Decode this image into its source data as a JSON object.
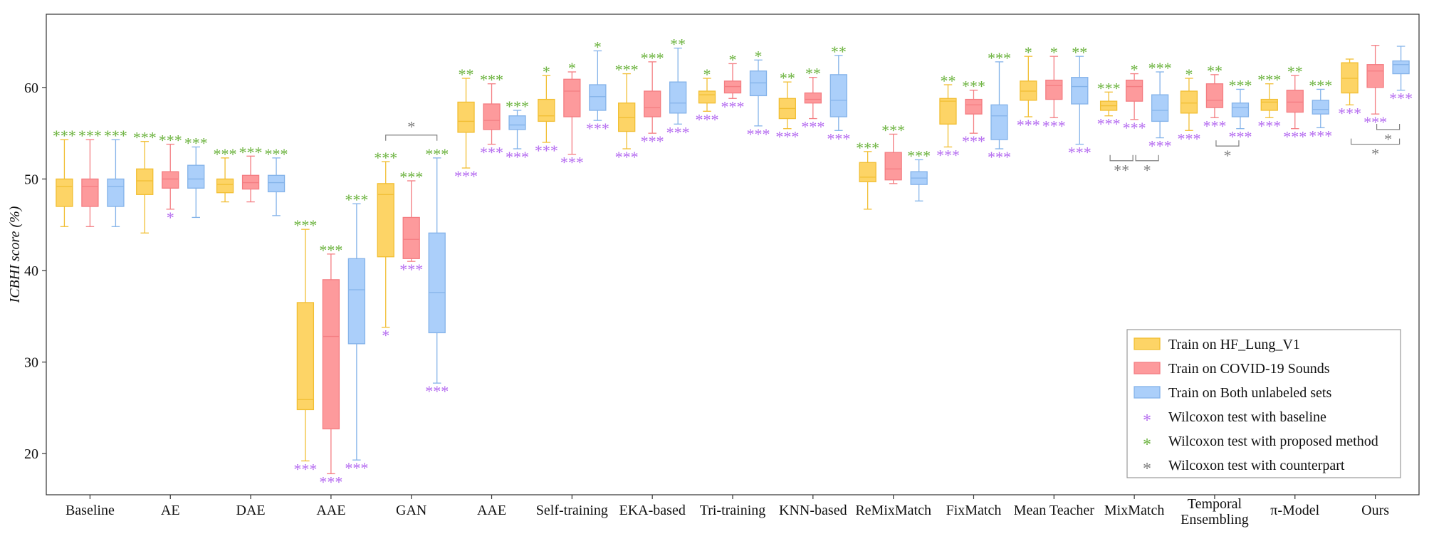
{
  "chart_data": {
    "type": "box",
    "ylabel": "ICBHI score (%)",
    "ylim": [
      15.5,
      68
    ],
    "yticks": [
      20,
      30,
      40,
      50,
      60
    ],
    "grid": false,
    "legend_position": "bottom-right",
    "categories": [
      "Baseline",
      "AE",
      "DAE",
      "AAE",
      "GAN",
      "AAE",
      "Self-training",
      "EKA-based",
      "Tri-training",
      "KNN-based",
      "ReMixMatch",
      "FixMatch",
      "Mean Teacher",
      "MixMatch",
      "Temporal Ensembling",
      "π-Model",
      "Ours"
    ],
    "series": [
      {
        "name": "Train on HF_Lung_V1",
        "fill": "#FDD466",
        "edge": "#F1BE32",
        "boxes": [
          [
            44.8,
            47.0,
            49.2,
            50.0,
            54.3
          ],
          [
            44.1,
            48.3,
            49.8,
            51.1,
            54.1
          ],
          [
            47.5,
            48.5,
            49.4,
            50.0,
            52.3
          ],
          [
            19.2,
            24.8,
            25.9,
            36.5,
            44.5
          ],
          [
            33.8,
            41.5,
            48.3,
            49.5,
            51.9
          ],
          [
            51.2,
            55.1,
            56.3,
            58.4,
            61.0
          ],
          [
            54.0,
            56.3,
            56.9,
            58.7,
            61.3
          ],
          [
            53.3,
            55.2,
            56.7,
            58.3,
            61.5
          ],
          [
            57.4,
            58.3,
            59.2,
            59.6,
            61.0
          ],
          [
            55.5,
            56.6,
            57.7,
            58.8,
            60.6
          ],
          [
            46.7,
            49.7,
            50.2,
            51.8,
            53.0
          ],
          [
            53.5,
            56.0,
            58.5,
            58.8,
            60.3
          ],
          [
            56.8,
            58.6,
            59.6,
            60.7,
            63.4
          ],
          [
            56.9,
            57.5,
            58.0,
            58.5,
            59.5
          ],
          [
            55.3,
            57.2,
            58.3,
            59.6,
            61.0
          ],
          [
            56.7,
            57.5,
            58.4,
            58.7,
            60.4
          ],
          [
            58.1,
            59.4,
            61.0,
            62.7,
            63.1
          ]
        ]
      },
      {
        "name": "Train on COVID-19 Sounds",
        "fill": "#FD9A9C",
        "edge": "#F47D82",
        "boxes": [
          [
            44.8,
            47.0,
            49.2,
            50.0,
            54.3
          ],
          [
            46.7,
            49.0,
            50.0,
            50.8,
            53.8
          ],
          [
            47.5,
            48.9,
            49.6,
            50.4,
            52.5
          ],
          [
            17.8,
            22.7,
            32.8,
            39.0,
            41.8
          ],
          [
            41.0,
            41.3,
            43.4,
            45.8,
            49.8
          ],
          [
            53.8,
            55.4,
            56.4,
            58.2,
            60.4
          ],
          [
            52.7,
            56.8,
            59.6,
            60.9,
            61.7
          ],
          [
            55.0,
            56.8,
            57.8,
            59.6,
            62.8
          ],
          [
            58.8,
            59.4,
            60.1,
            60.7,
            62.6
          ],
          [
            56.6,
            58.3,
            58.7,
            59.4,
            61.1
          ],
          [
            49.5,
            49.9,
            51.1,
            52.9,
            54.9
          ],
          [
            55.0,
            57.1,
            58.1,
            58.7,
            59.7
          ],
          [
            56.7,
            58.7,
            60.2,
            60.8,
            63.4
          ],
          [
            56.5,
            58.5,
            60.1,
            60.8,
            61.5
          ],
          [
            56.7,
            57.8,
            58.6,
            60.4,
            61.4
          ],
          [
            55.5,
            57.3,
            58.4,
            59.7,
            61.3
          ],
          [
            57.1,
            60.0,
            61.8,
            62.5,
            64.6
          ]
        ]
      },
      {
        "name": "Train on Both unlabeled sets",
        "fill": "#ABCFFA",
        "edge": "#84B3E9",
        "boxes": [
          [
            44.8,
            47.0,
            49.2,
            50.0,
            54.3
          ],
          [
            45.8,
            49.0,
            50.0,
            51.5,
            53.5
          ],
          [
            46.0,
            48.6,
            49.6,
            50.4,
            52.3
          ],
          [
            19.3,
            32.0,
            37.9,
            41.3,
            47.3
          ],
          [
            27.7,
            33.2,
            37.6,
            44.1,
            52.3
          ],
          [
            53.3,
            55.4,
            55.9,
            56.9,
            57.5
          ],
          [
            56.4,
            57.5,
            59.0,
            60.3,
            64.0
          ],
          [
            56.0,
            57.2,
            58.3,
            60.6,
            64.3
          ],
          [
            55.8,
            59.1,
            60.5,
            61.8,
            63.0
          ],
          [
            55.3,
            56.8,
            58.6,
            61.4,
            63.5
          ],
          [
            47.6,
            49.4,
            50.1,
            50.8,
            52.1
          ],
          [
            53.3,
            54.3,
            56.9,
            58.1,
            62.8
          ],
          [
            53.8,
            58.2,
            60.1,
            61.1,
            63.4
          ],
          [
            54.5,
            56.3,
            57.5,
            59.2,
            61.7
          ],
          [
            55.5,
            56.8,
            57.8,
            58.3,
            59.8
          ],
          [
            55.6,
            57.1,
            57.6,
            58.6,
            59.8
          ],
          [
            59.7,
            61.5,
            62.5,
            62.9,
            64.5
          ]
        ]
      }
    ],
    "annotations": {
      "green_top": [
        [
          "***",
          "***",
          "***"
        ],
        [
          "***",
          "***",
          "***"
        ],
        [
          "***",
          "***",
          "***"
        ],
        [
          "***",
          "***",
          "***"
        ],
        [
          "***",
          "***",
          "***"
        ],
        [
          "**",
          "***",
          "***"
        ],
        [
          "*",
          "*",
          "*"
        ],
        [
          "***",
          "***",
          "**"
        ],
        [
          "*",
          "*",
          "*"
        ],
        [
          "**",
          "**",
          "**"
        ],
        [
          "***",
          "***",
          "***"
        ],
        [
          "**",
          "***",
          "***"
        ],
        [
          "*",
          "*",
          "**"
        ],
        [
          "***",
          "*",
          "***"
        ],
        [
          "*",
          "**",
          "***"
        ],
        [
          "***",
          "**",
          "***"
        ],
        [
          "",
          "",
          ""
        ]
      ],
      "purple_bottom": [
        [
          "",
          "",
          ""
        ],
        [
          "",
          "*",
          ""
        ],
        [
          "",
          "",
          ""
        ],
        [
          "***",
          "***",
          "***"
        ],
        [
          "*",
          "***",
          "***"
        ],
        [
          "***",
          "***",
          "***"
        ],
        [
          "***",
          "***",
          "***"
        ],
        [
          "***",
          "***",
          "***"
        ],
        [
          "***",
          "***",
          "***"
        ],
        [
          "***",
          "***",
          "***"
        ],
        [
          "",
          "",
          ""
        ],
        [
          "***",
          "***",
          "***"
        ],
        [
          "***",
          "***",
          "***"
        ],
        [
          "***",
          "***",
          "***"
        ],
        [
          "***",
          "***",
          "***"
        ],
        [
          "***",
          "***",
          "***"
        ],
        [
          "***",
          "***",
          "***"
        ]
      ],
      "counterpart_brackets": [
        {
          "category": 4,
          "from": 0,
          "to": 2,
          "label": "*",
          "side": "top",
          "y": 54.8
        },
        {
          "category": 13,
          "from": 0,
          "to": 1,
          "label": "**",
          "side": "bottom",
          "y": 52.0
        },
        {
          "category": 13,
          "from": 1,
          "to": 2,
          "label": "*",
          "side": "bottom",
          "y": 52.0
        },
        {
          "category": 14,
          "from": 1,
          "to": 2,
          "label": "*",
          "side": "bottom",
          "y": 53.6
        },
        {
          "category": 16,
          "from": 1,
          "to": 2,
          "label": "*",
          "side": "bottom",
          "y": 55.4
        },
        {
          "category": 16,
          "from": 0,
          "to": 2,
          "label": "*",
          "side": "bottom",
          "y": 53.8
        }
      ],
      "purple_color": "#B56CF0",
      "green_color": "#6CB33F",
      "gray_color": "#7F7F7F"
    },
    "legend": [
      {
        "label": "Train on HF_Lung_V1",
        "kind": "box",
        "fill": "#FDD466",
        "edge": "#F1BE32"
      },
      {
        "label": "Train on COVID-19 Sounds",
        "kind": "box",
        "fill": "#FD9A9C",
        "edge": "#F47D82"
      },
      {
        "label": "Train on Both unlabeled sets",
        "kind": "box",
        "fill": "#ABCFFA",
        "edge": "#84B3E9"
      },
      {
        "label": "Wilcoxon test with baseline",
        "kind": "star",
        "color": "#B56CF0"
      },
      {
        "label": "Wilcoxon test with proposed method",
        "kind": "star",
        "color": "#6CB33F"
      },
      {
        "label": "Wilcoxon test with counterpart",
        "kind": "star",
        "color": "#7F7F7F"
      }
    ]
  }
}
